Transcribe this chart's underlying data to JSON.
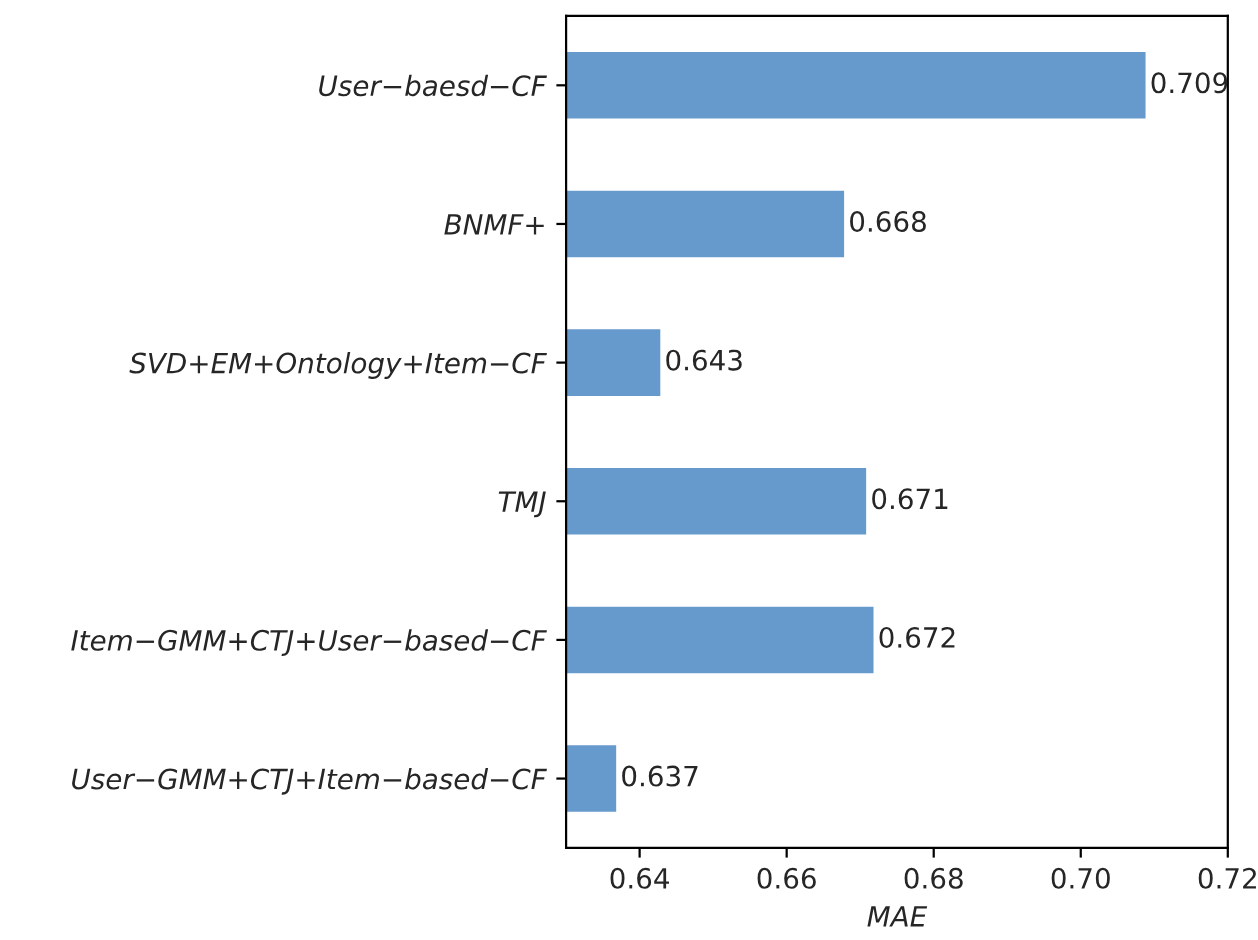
{
  "chart_data": {
    "type": "bar",
    "orientation": "horizontal",
    "xlabel": "MAE",
    "categories": [
      "User−baesd−CF",
      "BNMF+",
      "SVD+EM+Ontology+Item−CF",
      "TMJ",
      "Item−GMM+CTJ+User−based−CF",
      "User−GMM+CTJ+Item−based−CF"
    ],
    "values": [
      0.709,
      0.668,
      0.643,
      0.671,
      0.672,
      0.637
    ],
    "color": "#6699cc",
    "xlim": [
      0.63,
      0.72
    ],
    "xticks": [
      0.64,
      0.66,
      0.68,
      {
        "value": 0.7,
        "label": "0.70"
      },
      0.72
    ],
    "data_labels": true,
    "grid": false,
    "legend": false
  }
}
